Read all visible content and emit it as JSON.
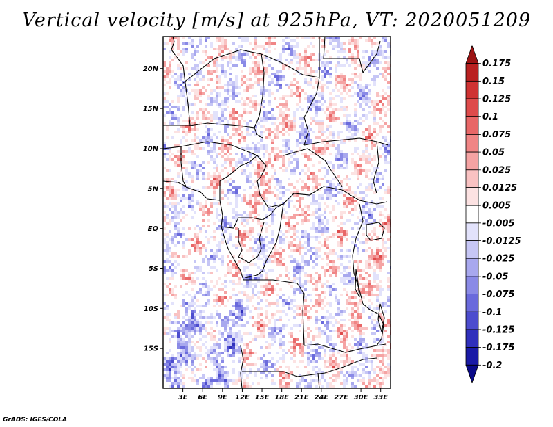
{
  "title": "Vertical velocity [m/s] at 925hPa, VT: 2020051209",
  "credit": "GrADS: IGES/COLA",
  "map": {
    "lon_range": [
      0,
      34.5
    ],
    "lat_range": [
      -20,
      24
    ],
    "lat_ticks": [
      {
        "value": 20,
        "label": "20N"
      },
      {
        "value": 15,
        "label": "15N"
      },
      {
        "value": 10,
        "label": "10N"
      },
      {
        "value": 5,
        "label": "5N"
      },
      {
        "value": 0,
        "label": "EQ"
      },
      {
        "value": -5,
        "label": "5S"
      },
      {
        "value": -10,
        "label": "10S"
      },
      {
        "value": -15,
        "label": "15S"
      }
    ],
    "lon_ticks": [
      {
        "value": 3,
        "label": "3E"
      },
      {
        "value": 6,
        "label": "6E"
      },
      {
        "value": 9,
        "label": "9E"
      },
      {
        "value": 12,
        "label": "12E"
      },
      {
        "value": 15,
        "label": "15E"
      },
      {
        "value": 18,
        "label": "18E"
      },
      {
        "value": 21,
        "label": "21E"
      },
      {
        "value": 24,
        "label": "24E"
      },
      {
        "value": 27,
        "label": "27E"
      },
      {
        "value": 30,
        "label": "30E"
      },
      {
        "value": 33,
        "label": "33E"
      }
    ]
  },
  "colorbar": {
    "levels": [
      "0.175",
      "0.15",
      "0.125",
      "0.1",
      "0.075",
      "0.05",
      "0.025",
      "0.0125",
      "0.005",
      "-0.005",
      "-0.0125",
      "-0.025",
      "-0.05",
      "-0.075",
      "-0.1",
      "-0.125",
      "-0.175",
      "-0.2"
    ],
    "colors": [
      "#9c1414",
      "#b92121",
      "#cf3232",
      "#de4b4b",
      "#e86767",
      "#f08585",
      "#f5a3a3",
      "#f9c2c2",
      "#fce2e2",
      "#ffffff",
      "#e2e2fb",
      "#c6c6f5",
      "#a8a8ee",
      "#8a8ae6",
      "#6a6adc",
      "#4c4cce",
      "#3030bc",
      "#1a1aa6",
      "#0b0b8a"
    ]
  }
}
